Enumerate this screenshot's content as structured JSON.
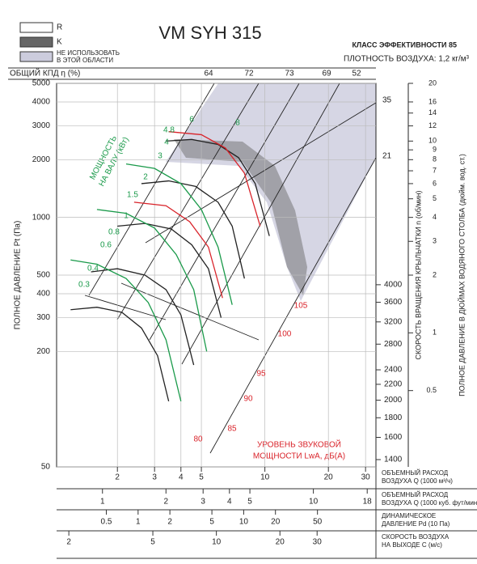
{
  "chart_data": {
    "type": "line",
    "title": "VM SYH 315",
    "legend_r": "R",
    "legend_k": "K",
    "legend_unusable": [
      "НЕ ИСПОЛЬЗОВАТЬ",
      "В ЭТОЙ ОБЛАСТИ"
    ],
    "efficiency_class": "КЛАСС ЭФФЕКТИВНОСТИ 85",
    "air_density": "ПЛОТНОСТЬ ВОЗДУХА: 1,2 кг/м³",
    "efficiency_label": "ОБЩИЙ КПД η (%)",
    "efficiency_values": [
      "64",
      "72",
      "73",
      "69",
      "52"
    ],
    "diagonal_labels": [
      "35",
      "21"
    ],
    "power_title": [
      "МОЩНОСТЬ",
      "НА ВАЛУ (кВт)"
    ],
    "power_labels": [
      "0.3",
      "0.4",
      "0.6",
      "0.8",
      "1",
      "1.5",
      "2",
      "3",
      "4",
      "4.8",
      "6",
      "8"
    ],
    "sound_title": [
      "УРОВЕНЬ ЗВУКОВОЙ",
      "МОЩНОСТИ LwA, дБ(A)"
    ],
    "sound_labels": [
      "80",
      "85",
      "90",
      "95",
      "100",
      "105"
    ],
    "ylabel": "ПОЛНОЕ ДАВЛЕНИЕ Pt (Па)",
    "y2label": "СКОРОСТЬ ВРАЩЕНИЯ КРЫЛЬЧАТКИ  n (об/мин)",
    "y3label": "ПОЛНОЕ ДАВЛЕНИЕ В ДЮЙМАХ ВОДЯНОГО СТОЛБА (дюйм. вод. ст.)",
    "xscale": "log",
    "yscale": "log",
    "xlim": [
      1.03,
      33.6
    ],
    "xticks": [
      2,
      3,
      4,
      5,
      10,
      20,
      30
    ],
    "xlabel": [
      "ОБЪЕМНЫЙ РАСХОД",
      "ВОЗДУХА Q (1000 м³/ч)"
    ],
    "x2lim": [
      0.606,
      19.8
    ],
    "x2ticks": [
      1,
      2,
      3,
      4,
      5,
      10,
      18
    ],
    "x2label": [
      "ОБЪЕМНЫЙ РАСХОД",
      "ВОЗДУХА Q (1000 куб. фут/мин)"
    ],
    "x3lim": [
      0.169,
      179
    ],
    "x3ticks": [
      0.5,
      1,
      2,
      5,
      10,
      20,
      50
    ],
    "x3label": [
      "ДИНАМИЧЕСКОЕ",
      "ДАВЛЕНИЕ Pd (10 Па)"
    ],
    "x4lim": [
      1.75,
      57
    ],
    "x4ticks": [
      2,
      5,
      10,
      20,
      30
    ],
    "x4label": [
      "СКОРОСТЬ ВОЗДУХА",
      "НА ВЫХОДЕ C (м/с)"
    ],
    "ylim": [
      50,
      5000
    ],
    "yticks": [
      50,
      200,
      300,
      400,
      500,
      1000,
      2000,
      3000,
      4000,
      5000
    ],
    "y2lim": [
      1340,
      13400
    ],
    "y2ticks": [
      1400,
      1600,
      1800,
      2000,
      2200,
      2400,
      2800,
      3200,
      3600,
      4000
    ],
    "y3lim": [
      0.2,
      20
    ],
    "y3ticks": [
      0.5,
      1,
      2,
      3,
      4,
      5,
      6,
      7,
      8,
      9,
      10,
      12,
      14,
      16,
      20
    ],
    "grid": true,
    "series": [
      {
        "color": "#222",
        "x": [
          3.4,
          4.5,
          6,
          7.5,
          9,
          10.5
        ],
        "values": [
          2500,
          2550,
          2400,
          2050,
          1500,
          800
        ]
      },
      {
        "color": "#222",
        "x": [
          2.6,
          3.5,
          4.7,
          6,
          7,
          8
        ],
        "values": [
          1500,
          1550,
          1450,
          1200,
          900,
          480
        ]
      },
      {
        "color": "#222",
        "x": [
          2,
          2.7,
          3.6,
          4.5,
          5.4,
          6.2
        ],
        "values": [
          900,
          930,
          870,
          720,
          540,
          300
        ]
      },
      {
        "color": "#222",
        "x": [
          1.5,
          2,
          2.7,
          3.4,
          4,
          4.6
        ],
        "values": [
          520,
          540,
          500,
          420,
          310,
          170
        ]
      },
      {
        "color": "#222",
        "x": [
          1.2,
          1.6,
          2.1,
          2.6,
          3.1,
          3.5
        ],
        "values": [
          330,
          340,
          320,
          265,
          190,
          110
        ]
      },
      {
        "color": "#1a9a4a",
        "x": [
          2.2,
          3,
          4,
          5,
          6,
          7
        ],
        "values": [
          1900,
          1800,
          1500,
          1100,
          700,
          350
        ]
      },
      {
        "color": "#1a9a4a",
        "x": [
          1.6,
          2.2,
          3,
          3.8,
          4.6,
          5.3
        ],
        "values": [
          1100,
          1050,
          880,
          640,
          420,
          200
        ]
      },
      {
        "color": "#1a9a4a",
        "x": [
          1.2,
          1.6,
          2.2,
          2.8,
          3.4,
          4
        ],
        "values": [
          600,
          570,
          480,
          360,
          230,
          110
        ]
      },
      {
        "color": "#d9232a",
        "x": [
          3.5,
          5,
          6.5,
          8,
          9.5
        ],
        "values": [
          2800,
          2700,
          2300,
          1700,
          900
        ]
      },
      {
        "color": "#d9232a",
        "x": [
          2.4,
          3.4,
          4.4,
          5.4,
          6.3
        ],
        "values": [
          1200,
          1150,
          950,
          700,
          380
        ]
      }
    ]
  }
}
